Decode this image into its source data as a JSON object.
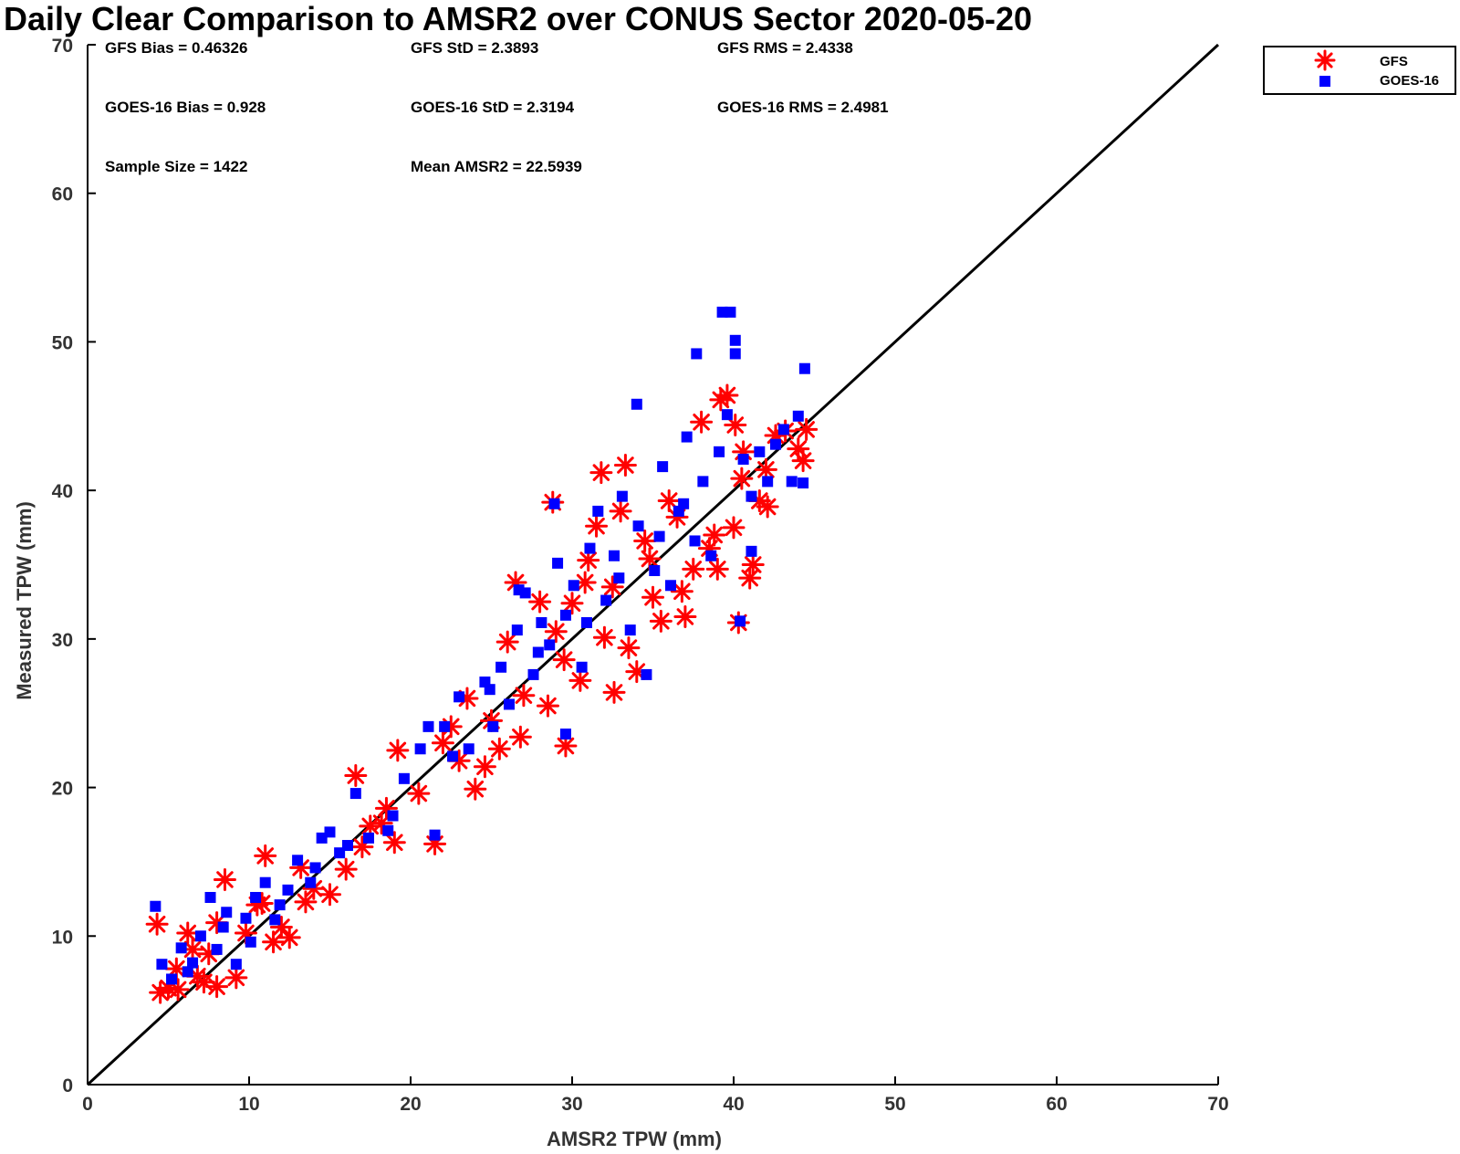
{
  "chart_data": {
    "type": "scatter",
    "title": "Daily Clear Comparison to AMSR2 over CONUS Sector 2020-05-20",
    "xlabel": "AMSR2 TPW (mm)",
    "ylabel": "Measured TPW (mm)",
    "xlim": [
      0,
      70
    ],
    "ylim": [
      0,
      70
    ],
    "xticks": [
      "0",
      "10",
      "20",
      "30",
      "40",
      "50",
      "60",
      "70"
    ],
    "yticks": [
      "0",
      "10",
      "20",
      "30",
      "40",
      "50",
      "60",
      "70"
    ],
    "legend": {
      "position": "outside-top-right",
      "entries": [
        "GFS",
        "GOES-16"
      ]
    },
    "colors": {
      "GFS": "#ff0000",
      "GOES-16": "#0000ff",
      "reference_line": "#000000"
    },
    "reference_line": {
      "label": "1:1 line",
      "x": [
        0,
        70
      ],
      "y": [
        0,
        70
      ]
    },
    "stats": {
      "gfs_bias": "GFS Bias = 0.46326",
      "gfs_std": "GFS StD = 2.3893",
      "gfs_rms": "GFS RMS = 2.4338",
      "goes_bias": "GOES-16 Bias = 0.928",
      "goes_std": "GOES-16 StD = 2.3194",
      "goes_rms": "GOES-16 RMS = 2.4981",
      "sample_size": "Sample Size = 1422",
      "mean_amsr2": "Mean AMSR2 = 22.5939"
    },
    "series": [
      {
        "name": "GFS",
        "marker": "asterisk",
        "points": [
          [
            4.3,
            10.8
          ],
          [
            4.5,
            6.2
          ],
          [
            5.0,
            6.5
          ],
          [
            5.5,
            7.8
          ],
          [
            6.2,
            10.2
          ],
          [
            6.8,
            7.3
          ],
          [
            7.5,
            8.8
          ],
          [
            8.0,
            6.6
          ],
          [
            8.5,
            13.8
          ],
          [
            9.2,
            7.2
          ],
          [
            9.8,
            10.2
          ],
          [
            10.5,
            12.1
          ],
          [
            11.0,
            15.4
          ],
          [
            11.5,
            9.6
          ],
          [
            12.5,
            9.9
          ],
          [
            13.2,
            14.6
          ],
          [
            14.0,
            13.2
          ],
          [
            15.0,
            12.8
          ],
          [
            16.0,
            14.5
          ],
          [
            16.6,
            20.8
          ],
          [
            17.5,
            17.4
          ],
          [
            18.5,
            18.6
          ],
          [
            19.0,
            16.3
          ],
          [
            19.2,
            22.5
          ],
          [
            20.5,
            19.6
          ],
          [
            21.5,
            16.2
          ],
          [
            22.0,
            23.0
          ],
          [
            23.0,
            21.8
          ],
          [
            23.5,
            26.0
          ],
          [
            24.0,
            19.9
          ],
          [
            25.0,
            24.5
          ],
          [
            25.5,
            22.6
          ],
          [
            26.0,
            29.8
          ],
          [
            26.5,
            33.8
          ],
          [
            27.0,
            26.2
          ],
          [
            28.0,
            32.5
          ],
          [
            28.5,
            25.5
          ],
          [
            28.8,
            39.2
          ],
          [
            29.0,
            30.5
          ],
          [
            29.5,
            28.6
          ],
          [
            29.6,
            22.8
          ],
          [
            30.0,
            32.4
          ],
          [
            30.5,
            27.2
          ],
          [
            31.0,
            35.3
          ],
          [
            31.5,
            37.6
          ],
          [
            31.8,
            41.2
          ],
          [
            32.0,
            30.1
          ],
          [
            32.5,
            33.5
          ],
          [
            33.0,
            38.6
          ],
          [
            33.3,
            41.7
          ],
          [
            33.5,
            29.4
          ],
          [
            34.0,
            27.8
          ],
          [
            34.5,
            36.6
          ],
          [
            35.0,
            32.8
          ],
          [
            35.5,
            31.2
          ],
          [
            36.0,
            39.3
          ],
          [
            36.5,
            38.2
          ],
          [
            37.0,
            31.5
          ],
          [
            37.5,
            34.7
          ],
          [
            38.0,
            44.6
          ],
          [
            38.5,
            36.1
          ],
          [
            39.0,
            34.7
          ],
          [
            39.2,
            46.1
          ],
          [
            39.6,
            46.4
          ],
          [
            40.0,
            37.5
          ],
          [
            40.1,
            44.4
          ],
          [
            40.3,
            31.1
          ],
          [
            40.6,
            42.6
          ],
          [
            41.0,
            34.1
          ],
          [
            41.2,
            35.0
          ],
          [
            41.6,
            39.3
          ],
          [
            42.1,
            38.9
          ],
          [
            42.6,
            43.7
          ],
          [
            43.2,
            44.0
          ],
          [
            44.0,
            42.8
          ],
          [
            44.3,
            42.0
          ],
          [
            44.5,
            44.1
          ],
          [
            42.0,
            41.4
          ],
          [
            10.8,
            12.2
          ],
          [
            8.0,
            10.9
          ],
          [
            6.5,
            9.1
          ],
          [
            7.2,
            6.9
          ],
          [
            5.6,
            6.4
          ],
          [
            12.0,
            10.6
          ],
          [
            13.5,
            12.3
          ],
          [
            17.0,
            16.0
          ],
          [
            18.2,
            17.6
          ],
          [
            22.5,
            24.1
          ],
          [
            24.6,
            21.4
          ],
          [
            26.8,
            23.4
          ],
          [
            30.8,
            33.8
          ],
          [
            32.6,
            26.4
          ],
          [
            34.8,
            35.4
          ],
          [
            36.8,
            33.2
          ],
          [
            38.8,
            37.0
          ],
          [
            40.5,
            40.8
          ]
        ]
      },
      {
        "name": "GOES-16",
        "marker": "square",
        "points": [
          [
            4.2,
            12.0
          ],
          [
            4.6,
            8.1
          ],
          [
            5.2,
            7.1
          ],
          [
            5.8,
            9.2
          ],
          [
            6.5,
            8.2
          ],
          [
            7.0,
            10.0
          ],
          [
            7.6,
            12.6
          ],
          [
            8.0,
            9.1
          ],
          [
            8.6,
            11.6
          ],
          [
            9.2,
            8.1
          ],
          [
            9.8,
            11.2
          ],
          [
            10.4,
            12.6
          ],
          [
            11.0,
            13.6
          ],
          [
            11.6,
            11.1
          ],
          [
            12.4,
            13.1
          ],
          [
            13.0,
            15.1
          ],
          [
            13.8,
            13.6
          ],
          [
            14.5,
            16.6
          ],
          [
            15.0,
            17.0
          ],
          [
            15.6,
            15.6
          ],
          [
            16.6,
            19.6
          ],
          [
            17.4,
            16.6
          ],
          [
            18.6,
            17.1
          ],
          [
            19.6,
            20.6
          ],
          [
            20.6,
            22.6
          ],
          [
            21.5,
            16.8
          ],
          [
            22.1,
            24.1
          ],
          [
            23.0,
            26.1
          ],
          [
            23.6,
            22.6
          ],
          [
            24.6,
            27.1
          ],
          [
            25.1,
            24.1
          ],
          [
            25.6,
            28.1
          ],
          [
            26.1,
            25.6
          ],
          [
            26.6,
            30.6
          ],
          [
            27.1,
            33.1
          ],
          [
            27.6,
            27.6
          ],
          [
            28.1,
            31.1
          ],
          [
            28.6,
            29.6
          ],
          [
            29.1,
            35.1
          ],
          [
            29.6,
            31.6
          ],
          [
            30.1,
            33.6
          ],
          [
            30.6,
            28.1
          ],
          [
            31.1,
            36.1
          ],
          [
            31.6,
            38.6
          ],
          [
            32.1,
            32.6
          ],
          [
            32.6,
            35.6
          ],
          [
            33.1,
            39.6
          ],
          [
            33.6,
            30.6
          ],
          [
            34.0,
            45.8
          ],
          [
            34.1,
            37.6
          ],
          [
            34.6,
            27.6
          ],
          [
            35.1,
            34.6
          ],
          [
            35.6,
            41.6
          ],
          [
            36.1,
            33.6
          ],
          [
            36.6,
            38.6
          ],
          [
            37.1,
            43.6
          ],
          [
            37.6,
            36.6
          ],
          [
            37.7,
            49.2
          ],
          [
            38.1,
            40.6
          ],
          [
            38.6,
            35.6
          ],
          [
            39.1,
            42.6
          ],
          [
            39.3,
            52.0
          ],
          [
            39.6,
            45.1
          ],
          [
            39.8,
            52.0
          ],
          [
            40.1,
            50.1
          ],
          [
            40.1,
            49.2
          ],
          [
            40.6,
            42.1
          ],
          [
            41.1,
            39.6
          ],
          [
            41.1,
            35.9
          ],
          [
            41.6,
            42.6
          ],
          [
            42.1,
            40.6
          ],
          [
            42.6,
            43.1
          ],
          [
            43.1,
            44.1
          ],
          [
            43.6,
            40.6
          ],
          [
            44.0,
            45.0
          ],
          [
            44.3,
            40.5
          ],
          [
            44.4,
            48.2
          ],
          [
            40.4,
            31.2
          ],
          [
            29.6,
            23.6
          ],
          [
            21.1,
            24.1
          ],
          [
            28.9,
            39.1
          ],
          [
            26.7,
            33.3
          ],
          [
            6.2,
            7.6
          ],
          [
            8.4,
            10.6
          ],
          [
            10.1,
            9.6
          ],
          [
            11.9,
            12.1
          ],
          [
            14.1,
            14.6
          ],
          [
            16.1,
            16.1
          ],
          [
            18.9,
            18.1
          ],
          [
            22.6,
            22.1
          ],
          [
            24.9,
            26.6
          ],
          [
            27.9,
            29.1
          ],
          [
            30.9,
            31.1
          ],
          [
            32.9,
            34.1
          ],
          [
            35.4,
            36.9
          ],
          [
            36.9,
            39.1
          ]
        ]
      }
    ]
  }
}
